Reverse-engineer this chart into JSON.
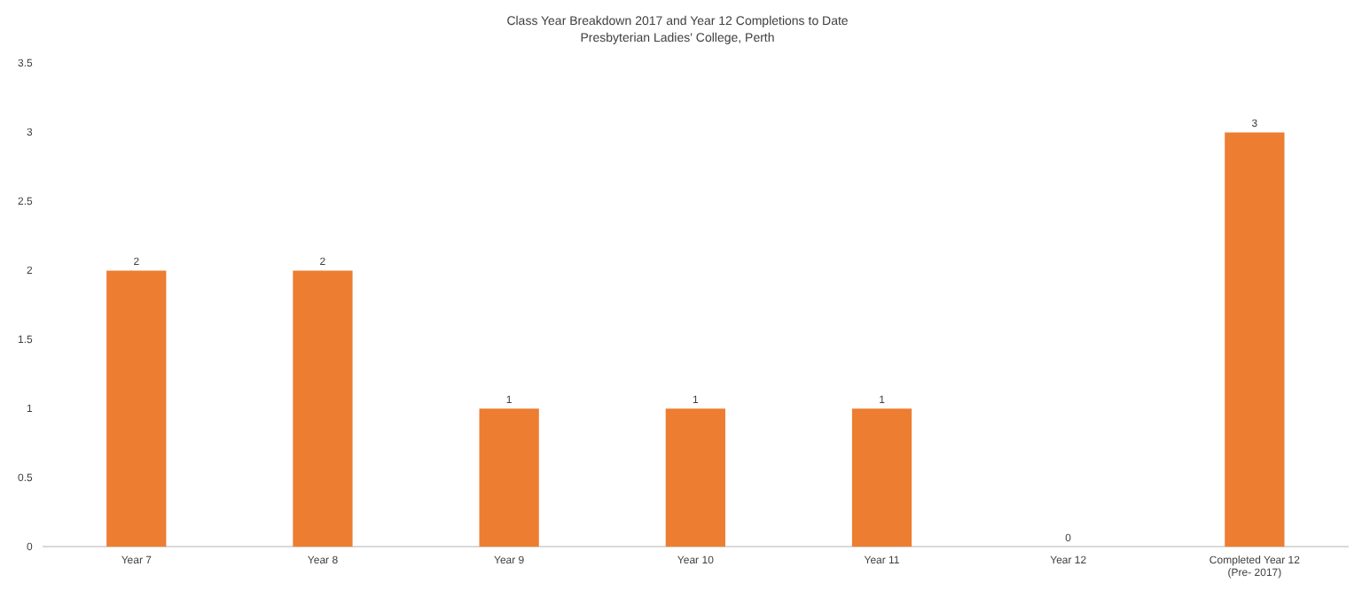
{
  "chart_data": {
    "type": "bar",
    "title": "Class Year Breakdown 2017 and Year 12 Completions to Date",
    "subtitle": "Presbyterian Ladies' College, Perth",
    "categories": [
      "Year 7",
      "Year 8",
      "Year 9",
      "Year 10",
      "Year 11",
      "Year 12",
      "Completed Year 12 (Pre- 2017)"
    ],
    "values": [
      2,
      2,
      1,
      1,
      1,
      0,
      3
    ],
    "color": "#ed7d31",
    "ylim": [
      0,
      3.5
    ],
    "yticks": [
      0,
      0.5,
      1,
      1.5,
      2,
      2.5,
      3,
      3.5
    ],
    "grid": false,
    "legend": false,
    "data_labels": true
  }
}
